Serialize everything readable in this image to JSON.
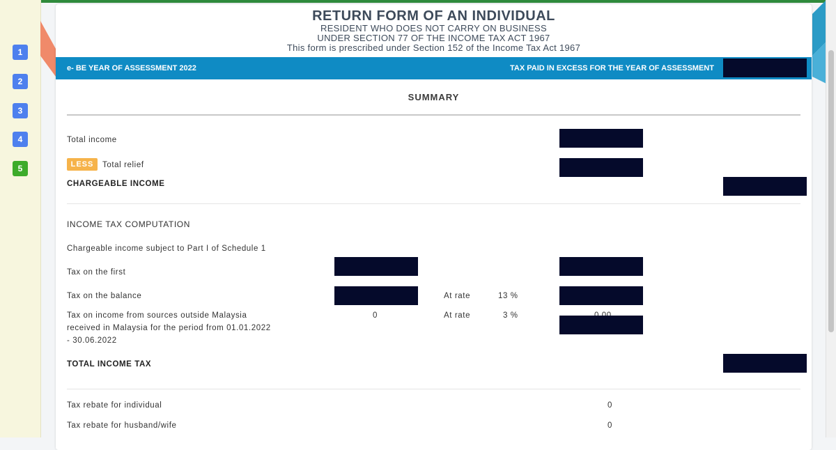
{
  "steps": [
    "1",
    "2",
    "3",
    "4",
    "5"
  ],
  "colors": {
    "step_blue": "#4e80ee",
    "step_active": "#3dab2a",
    "band": "#0f8bc4",
    "less_badge": "#f6b34a",
    "redaction": "#050a2b"
  },
  "header": {
    "title": "RETURN FORM OF AN INDIVIDUAL",
    "line1": "RESIDENT WHO DOES NOT CARRY ON BUSINESS",
    "line2": "UNDER SECTION 77 OF THE INCOME TAX ACT 1967",
    "line3": "This form is prescribed under Section 152 of the Income Tax Act 1967"
  },
  "band": {
    "left": "e- BE YEAR OF ASSESSMENT 2022",
    "right": "TAX PAID IN EXCESS FOR THE YEAR OF ASSESSMENT"
  },
  "summary": {
    "heading": "SUMMARY",
    "total_income": "Total income",
    "less_badge": "LESS",
    "total_relief": "Total relief",
    "chargeable_income": "CHARGEABLE INCOME"
  },
  "computation": {
    "heading": "INCOME TAX COMPUTATION",
    "subject_line": "Chargeable income subject to Part I of Schedule 1",
    "tax_first": "Tax on the first",
    "tax_balance": "Tax on the balance",
    "at_rate_label": "At rate",
    "balance_rate": "13 %",
    "foreign_line1": "Tax on income from sources outside Malaysia",
    "foreign_line2": "received in Malaysia for the period from 01.01.2022",
    "foreign_line3": "- 30.06.2022",
    "foreign_amount": "0",
    "foreign_rate": "3 %",
    "foreign_tax": "0.00",
    "total_income_tax": "TOTAL INCOME TAX"
  },
  "rebates": {
    "individual_label": "Tax rebate for individual",
    "individual_value": "0",
    "spouse_label": "Tax rebate for husband/wife",
    "spouse_value": "0"
  }
}
